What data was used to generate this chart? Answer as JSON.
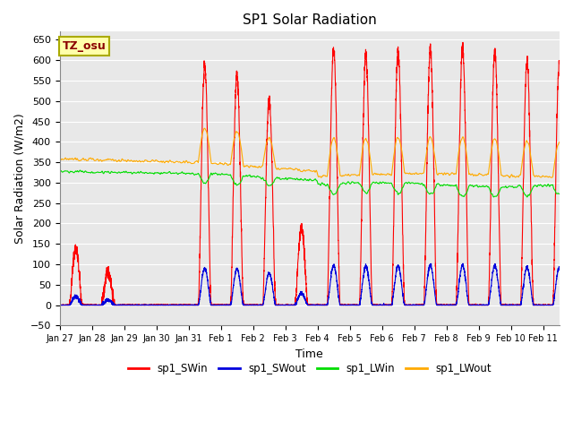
{
  "title": "SP1 Solar Radiation",
  "xlabel": "Time",
  "ylabel": "Solar Radiation (W/m2)",
  "ylim": [
    -50,
    670
  ],
  "yticks": [
    -50,
    0,
    50,
    100,
    150,
    200,
    250,
    300,
    350,
    400,
    450,
    500,
    550,
    600,
    650
  ],
  "annotation_text": "TZ_osu",
  "annotation_color": "#8b0000",
  "annotation_bg": "#ffffaa",
  "annotation_edge": "#aaaa00",
  "bg_color": "#e8e8e8",
  "fig_bg": "#ffffff",
  "series_colors": {
    "sp1_SWin": "#ff0000",
    "sp1_SWout": "#0000dd",
    "sp1_LWin": "#00dd00",
    "sp1_LWout": "#ffaa00"
  },
  "x_tick_labels": [
    "Jan 27",
    "Jan 28",
    "Jan 29",
    "Jan 30",
    "Jan 31",
    "Feb 1",
    "Feb 2",
    "Feb 3",
    "Feb 4",
    "Feb 5",
    "Feb 6",
    "Feb 7",
    "Feb 8",
    "Feb 9",
    "Feb 10",
    "Feb 11"
  ],
  "num_days": 15.5,
  "points_per_day": 288,
  "seed": 42,
  "line_width": 0.8
}
